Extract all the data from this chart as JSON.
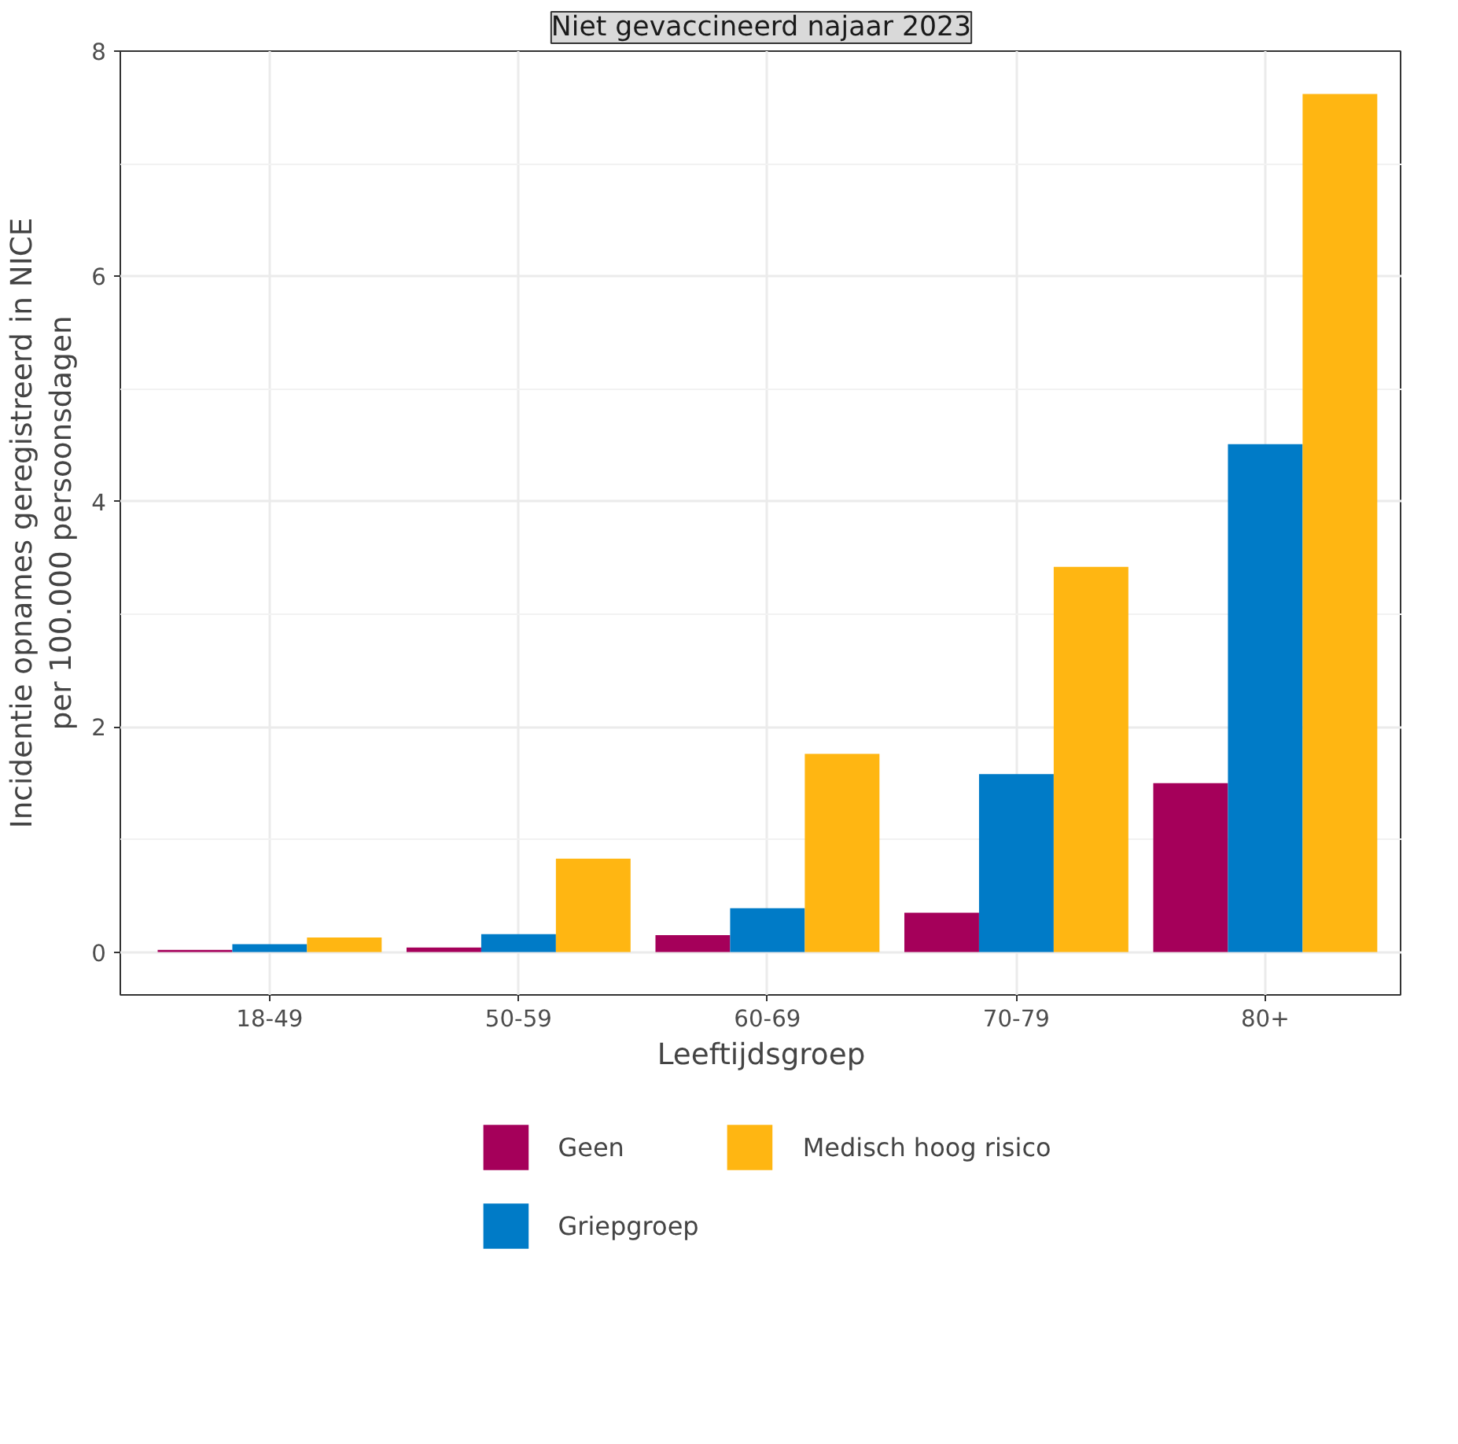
{
  "chart_data": {
    "type": "bar",
    "title": "Niet gevaccineerd najaar 2023",
    "xlabel": "Leeftijdsgroep",
    "ylabel": "Incidentie opnames geregistreerd in NICE\nper 100.000 persoonsdagen",
    "categories": [
      "18-49",
      "50-59",
      "60-69",
      "70-79",
      "80+"
    ],
    "series": [
      {
        "name": "Geen",
        "color": "#a5005a",
        "values": [
          0.02,
          0.04,
          0.15,
          0.35,
          1.5
        ]
      },
      {
        "name": "Griepgroep",
        "color": "#007bc7",
        "values": [
          0.07,
          0.16,
          0.39,
          1.58,
          4.51
        ]
      },
      {
        "name": "Medisch hoog risico",
        "color": "#ffb612",
        "values": [
          0.13,
          0.83,
          1.76,
          3.42,
          7.62
        ]
      }
    ],
    "ylim": [
      -0.38,
      8.0
    ],
    "yticks": [
      0,
      2,
      4,
      6,
      8
    ],
    "grid": true,
    "legend": "bottom"
  }
}
